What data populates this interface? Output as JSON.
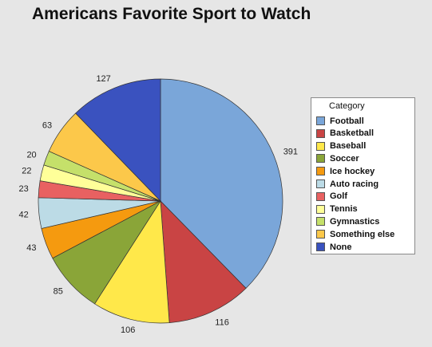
{
  "chart_data": {
    "type": "pie",
    "title": "Americans Favorite Sport to Watch",
    "legend_title": "Category",
    "legend_placement": "right",
    "slices": [
      {
        "name": "Football",
        "value": 391,
        "color": "#7aa6d9"
      },
      {
        "name": "Basketball",
        "value": 116,
        "color": "#c94444"
      },
      {
        "name": "Baseball",
        "value": 106,
        "color": "#ffe84a"
      },
      {
        "name": "Soccer",
        "value": 85,
        "color": "#8aa538"
      },
      {
        "name": "Ice hockey",
        "value": 43,
        "color": "#f59a0f"
      },
      {
        "name": "Auto racing",
        "value": 42,
        "color": "#bcdbe6"
      },
      {
        "name": "Golf",
        "value": 23,
        "color": "#e86161"
      },
      {
        "name": "Tennis",
        "value": 22,
        "color": "#ffff99"
      },
      {
        "name": "Gymnastics",
        "value": 20,
        "color": "#c5e06a"
      },
      {
        "name": "Something else",
        "value": 63,
        "color": "#fcc84a"
      },
      {
        "name": "None",
        "value": 127,
        "color": "#3a52bf"
      }
    ]
  }
}
